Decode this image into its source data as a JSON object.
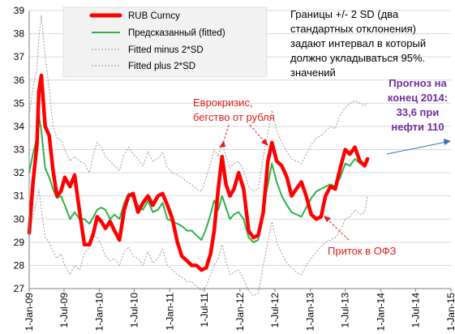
{
  "chart_data": {
    "type": "line",
    "title": "",
    "xlabel": "",
    "ylabel": "",
    "ylim": [
      27,
      39
    ],
    "y_ticks": [
      27,
      28,
      29,
      30,
      31,
      32,
      33,
      34,
      35,
      36,
      37,
      38,
      39
    ],
    "x_range": [
      "2009-01-01",
      "2015-01-01"
    ],
    "x_ticks": [
      "1-Jan-09",
      "1-Jul-09",
      "1-Jan-10",
      "1-Jul-10",
      "1-Jan-11",
      "1-Jul-11",
      "1-Jan-12",
      "1-Jul-12",
      "1-Jan-13",
      "1-Jul-13",
      "1-Jan-14",
      "1-Jul-14",
      "1-Jan-15"
    ],
    "grid": "horizontal",
    "legend_position": "top-left",
    "colors": {
      "rub": "#ff0000",
      "fitted": "#2db34a",
      "bands": "#999999",
      "annotation_red": "#e01b1b",
      "annotation_purple": "#7030a0",
      "forecast_arrow": "#2e75b6"
    },
    "series": [
      {
        "name": "RUB Curncy",
        "style": "red-thick",
        "x": [
          "2009-01-01",
          "2009-01-20",
          "2009-02-10",
          "2009-02-20",
          "2009-03-05",
          "2009-03-25",
          "2009-04-15",
          "2009-05-05",
          "2009-05-25",
          "2009-06-15",
          "2009-07-05",
          "2009-08-01",
          "2009-08-25",
          "2009-09-20",
          "2009-10-15",
          "2009-11-10",
          "2009-12-01",
          "2009-12-20",
          "2010-01-10",
          "2010-02-01",
          "2010-02-25",
          "2010-03-20",
          "2010-04-15",
          "2010-05-10",
          "2010-06-01",
          "2010-06-25",
          "2010-07-20",
          "2010-08-15",
          "2010-09-10",
          "2010-10-05",
          "2010-11-01",
          "2010-11-25",
          "2010-12-20",
          "2011-01-15",
          "2011-02-10",
          "2011-03-05",
          "2011-04-01",
          "2011-04-25",
          "2011-05-20",
          "2011-06-15",
          "2011-07-10",
          "2011-08-01",
          "2011-08-20",
          "2011-09-10",
          "2011-09-30",
          "2011-10-20",
          "2011-11-10",
          "2011-12-01",
          "2011-12-25",
          "2012-01-20",
          "2012-02-15",
          "2012-03-10",
          "2012-04-05",
          "2012-05-01",
          "2012-05-25",
          "2012-06-15",
          "2012-07-10",
          "2012-08-05",
          "2012-09-01",
          "2012-09-25",
          "2012-10-20",
          "2012-11-15",
          "2012-12-10",
          "2013-01-05",
          "2013-02-01",
          "2013-02-25",
          "2013-03-20",
          "2013-04-15",
          "2013-05-10",
          "2013-06-05",
          "2013-07-01",
          "2013-07-25",
          "2013-08-20",
          "2013-09-15",
          "2013-10-10",
          "2013-10-25"
        ],
        "values": [
          29.4,
          31.5,
          33.2,
          35.5,
          36.2,
          34.0,
          33.6,
          32.1,
          31.0,
          31.2,
          31.8,
          31.4,
          31.9,
          30.3,
          28.9,
          28.9,
          29.4,
          30.1,
          29.9,
          29.6,
          29.9,
          29.5,
          29.1,
          30.4,
          31.0,
          31.1,
          30.3,
          30.7,
          31.0,
          30.6,
          31.0,
          31.1,
          30.6,
          30.0,
          29.0,
          28.4,
          28.2,
          28.0,
          28.0,
          27.8,
          27.9,
          28.5,
          29.5,
          31.3,
          32.7,
          31.5,
          31.0,
          31.3,
          32.0,
          31.3,
          29.5,
          29.2,
          29.3,
          30.3,
          32.5,
          33.3,
          32.5,
          32.3,
          31.8,
          31.0,
          31.3,
          31.6,
          31.0,
          30.2,
          30.0,
          30.1,
          31.0,
          31.4,
          31.3,
          32.2,
          33.0,
          32.8,
          33.1,
          32.5,
          32.3,
          32.6
        ]
      },
      {
        "name": "Предсказанный (fitted)",
        "style": "green",
        "x": [
          "2009-01-01",
          "2009-01-20",
          "2009-02-10",
          "2009-02-20",
          "2009-03-05",
          "2009-03-25",
          "2009-04-15",
          "2009-05-05",
          "2009-05-25",
          "2009-06-15",
          "2009-07-05",
          "2009-08-01",
          "2009-08-25",
          "2009-09-20",
          "2009-10-15",
          "2009-11-10",
          "2009-12-01",
          "2009-12-20",
          "2010-01-10",
          "2010-02-01",
          "2010-02-25",
          "2010-03-20",
          "2010-04-15",
          "2010-05-10",
          "2010-06-01",
          "2010-06-25",
          "2010-07-20",
          "2010-08-15",
          "2010-09-10",
          "2010-10-05",
          "2010-11-01",
          "2010-11-25",
          "2010-12-20",
          "2011-01-15",
          "2011-02-10",
          "2011-03-05",
          "2011-04-01",
          "2011-04-25",
          "2011-05-20",
          "2011-06-15",
          "2011-07-10",
          "2011-08-01",
          "2011-08-20",
          "2011-09-10",
          "2011-09-30",
          "2011-10-20",
          "2011-11-10",
          "2011-12-01",
          "2011-12-25",
          "2012-01-20",
          "2012-02-15",
          "2012-03-10",
          "2012-04-05",
          "2012-05-01",
          "2012-05-25",
          "2012-06-15",
          "2012-07-10",
          "2012-08-05",
          "2012-09-01",
          "2012-09-25",
          "2012-10-20",
          "2012-11-15",
          "2012-12-10",
          "2013-01-05",
          "2013-02-01",
          "2013-02-25",
          "2013-03-20",
          "2013-04-15",
          "2013-05-10",
          "2013-06-05",
          "2013-07-01",
          "2013-07-25",
          "2013-08-20",
          "2013-09-15",
          "2013-10-10",
          "2013-10-25"
        ],
        "values": [
          32.0,
          32.8,
          33.5,
          34.5,
          33.8,
          32.2,
          31.8,
          31.3,
          30.9,
          31.0,
          30.6,
          30.0,
          30.3,
          30.0,
          30.0,
          29.8,
          30.1,
          30.4,
          30.5,
          30.4,
          30.0,
          30.2,
          30.0,
          30.7,
          31.1,
          30.9,
          30.6,
          30.4,
          30.8,
          30.3,
          30.4,
          30.7,
          30.0,
          29.9,
          29.8,
          29.7,
          29.5,
          29.5,
          29.3,
          29.1,
          29.6,
          30.2,
          30.8,
          30.4,
          31.0,
          30.5,
          30.0,
          30.2,
          30.3,
          30.0,
          29.2,
          29.0,
          29.1,
          30.5,
          31.5,
          32.4,
          31.6,
          31.0,
          30.6,
          30.3,
          30.2,
          30.1,
          30.5,
          30.9,
          31.2,
          31.3,
          31.4,
          31.5,
          31.4,
          31.8,
          32.4,
          32.3,
          32.6,
          32.4,
          32.3,
          32.6
        ]
      },
      {
        "name": "Fitted minus 2*SD",
        "style": "dotted-gray",
        "x": [
          "2009-01-01",
          "2009-01-20",
          "2009-02-10",
          "2009-02-20",
          "2009-03-05",
          "2009-03-25",
          "2009-04-15",
          "2009-05-05",
          "2009-05-25",
          "2009-06-15",
          "2009-07-05",
          "2009-08-01",
          "2009-08-25",
          "2009-09-20",
          "2009-10-15",
          "2009-11-10",
          "2009-12-01",
          "2009-12-20",
          "2010-01-10",
          "2010-02-01",
          "2010-02-25",
          "2010-03-20",
          "2010-04-15",
          "2010-05-10",
          "2010-06-01",
          "2010-06-25",
          "2010-07-20",
          "2010-08-15",
          "2010-09-10",
          "2010-10-05",
          "2010-11-01",
          "2010-11-25",
          "2010-12-20",
          "2011-01-15",
          "2011-02-10",
          "2011-03-05",
          "2011-04-01",
          "2011-04-25",
          "2011-05-20",
          "2011-06-15",
          "2011-07-10",
          "2011-08-01",
          "2011-08-20",
          "2011-09-10",
          "2011-09-30",
          "2011-10-20",
          "2011-11-10",
          "2011-12-01",
          "2011-12-25",
          "2012-01-20",
          "2012-02-15",
          "2012-03-10",
          "2012-04-05",
          "2012-05-01",
          "2012-05-25",
          "2012-06-15",
          "2012-07-10",
          "2012-08-05",
          "2012-09-01",
          "2012-09-25",
          "2012-10-20",
          "2012-11-15",
          "2012-12-10",
          "2013-01-05",
          "2013-02-01",
          "2013-02-25",
          "2013-03-20",
          "2013-04-15",
          "2013-05-10",
          "2013-06-05",
          "2013-07-01",
          "2013-07-25",
          "2013-08-20",
          "2013-09-15",
          "2013-10-10",
          "2013-10-25"
        ],
        "values": [
          29.5,
          30.1,
          30.8,
          31.3,
          30.4,
          29.2,
          29.0,
          28.6,
          28.3,
          28.5,
          28.0,
          27.6,
          28.0,
          27.8,
          28.5,
          28.8,
          29.3,
          29.2,
          28.9,
          28.4,
          28.2,
          28.3,
          28.0,
          28.6,
          28.8,
          28.4,
          28.3,
          28.0,
          28.6,
          28.1,
          28.3,
          28.7,
          28.0,
          27.8,
          27.6,
          27.5,
          27.3,
          27.3,
          27.1,
          26.9,
          27.1,
          27.6,
          28.0,
          28.3,
          28.9,
          28.2,
          27.6,
          27.7,
          27.8,
          27.4,
          26.9,
          26.7,
          26.8,
          28.0,
          29.0,
          29.9,
          29.0,
          28.5,
          28.1,
          27.9,
          27.7,
          27.6,
          28.0,
          28.3,
          28.6,
          28.8,
          29.0,
          29.1,
          29.2,
          29.5,
          30.0,
          30.1,
          30.4,
          30.2,
          30.3,
          31.0
        ]
      },
      {
        "name": "Fitted plus 2*SD",
        "style": "dotted-gray",
        "x": [
          "2009-01-01",
          "2009-01-20",
          "2009-02-10",
          "2009-02-20",
          "2009-03-05",
          "2009-03-25",
          "2009-04-15",
          "2009-05-05",
          "2009-05-25",
          "2009-06-15",
          "2009-07-05",
          "2009-08-01",
          "2009-08-25",
          "2009-09-20",
          "2009-10-15",
          "2009-11-10",
          "2009-12-01",
          "2009-12-20",
          "2010-01-10",
          "2010-02-01",
          "2010-02-25",
          "2010-03-20",
          "2010-04-15",
          "2010-05-10",
          "2010-06-01",
          "2010-06-25",
          "2010-07-20",
          "2010-08-15",
          "2010-09-10",
          "2010-10-05",
          "2010-11-01",
          "2010-11-25",
          "2010-12-20",
          "2011-01-15",
          "2011-02-10",
          "2011-03-05",
          "2011-04-01",
          "2011-04-25",
          "2011-05-20",
          "2011-06-15",
          "2011-07-10",
          "2011-08-01",
          "2011-08-20",
          "2011-09-10",
          "2011-09-30",
          "2011-10-20",
          "2011-11-10",
          "2011-12-01",
          "2011-12-25",
          "2012-01-20",
          "2012-02-15",
          "2012-03-10",
          "2012-04-05",
          "2012-05-01",
          "2012-05-25",
          "2012-06-15",
          "2012-07-10",
          "2012-08-05",
          "2012-09-01",
          "2012-09-25",
          "2012-10-20",
          "2012-11-15",
          "2012-12-10",
          "2013-01-05",
          "2013-02-01",
          "2013-02-25",
          "2013-03-20",
          "2013-04-15",
          "2013-05-10",
          "2013-06-05",
          "2013-07-01",
          "2013-07-25",
          "2013-08-20",
          "2013-09-15",
          "2013-10-10",
          "2013-10-25"
        ],
        "values": [
          34.5,
          35.6,
          36.5,
          37.8,
          38.8,
          37.0,
          35.6,
          34.0,
          33.5,
          33.4,
          33.0,
          32.5,
          32.7,
          32.5,
          32.4,
          32.0,
          32.8,
          33.3,
          33.1,
          32.7,
          32.5,
          32.3,
          32.1,
          32.8,
          33.1,
          32.8,
          32.6,
          32.3,
          32.9,
          32.5,
          32.6,
          32.9,
          32.2,
          32.0,
          31.9,
          31.8,
          31.6,
          31.5,
          31.3,
          31.2,
          31.8,
          32.4,
          33.0,
          32.7,
          33.3,
          32.7,
          32.2,
          32.4,
          32.5,
          32.1,
          31.4,
          31.2,
          31.3,
          32.7,
          33.7,
          34.7,
          33.8,
          33.3,
          32.9,
          32.6,
          32.5,
          32.4,
          32.8,
          33.2,
          33.5,
          33.6,
          33.8,
          34.0,
          33.9,
          34.5,
          34.8,
          35.0,
          35.1,
          35.0,
          34.9,
          35.0
        ]
      }
    ],
    "annotations": {
      "band_note": [
        "Границы +/- 2 SD (два",
        "стандартных отклонения)",
        "задают интервал  в который",
        "должно укладываться 95%.",
        "значений"
      ],
      "eurocrisis": [
        "Еврокризис,",
        "бегство от рубля"
      ],
      "ofz_inflow": "Приток в ОФЗ",
      "forecast": [
        "Прогноз на",
        "конец 2014:",
        "33,6 при",
        "нефти 110"
      ],
      "forecast_target": {
        "x": "2015-01-01",
        "y": 33.6
      }
    }
  }
}
